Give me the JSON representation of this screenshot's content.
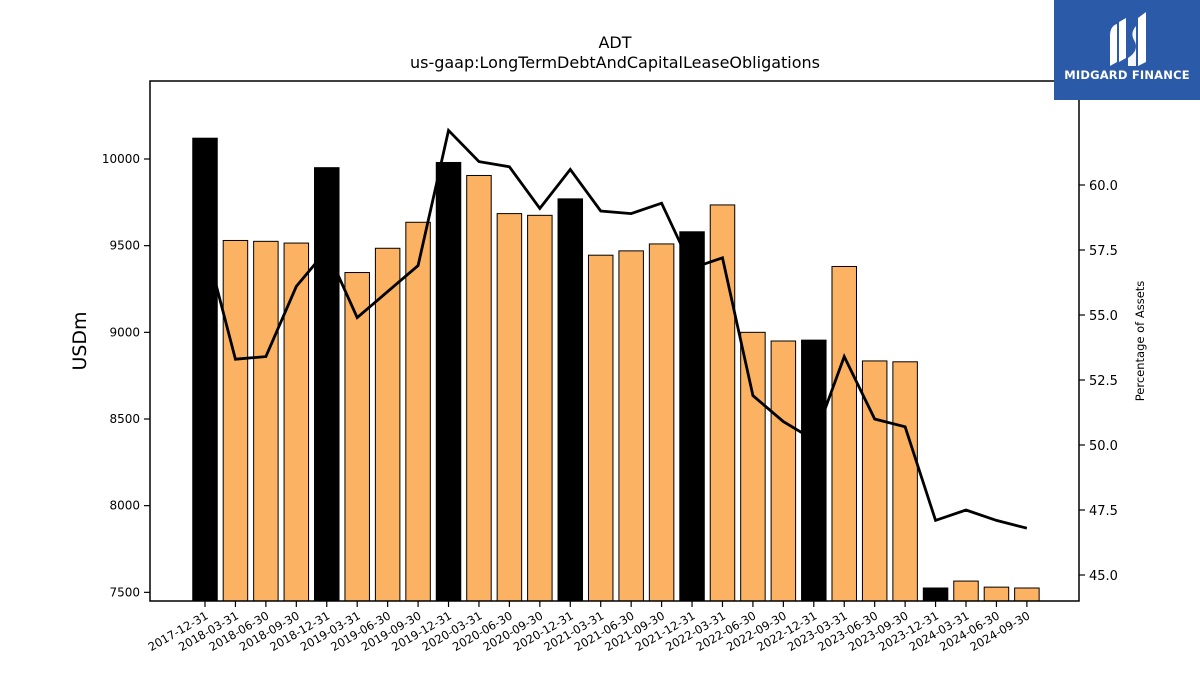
{
  "logo": {
    "text": "MIDGARD FINANCE",
    "icon": "midgard-logo-icon",
    "background": "#2a5aa8"
  },
  "chart_data": {
    "type": "bar",
    "title": "ADT",
    "subtitle": "us-gaap:LongTermDebtAndCapitalLeaseObligations",
    "ylabel": "USDm",
    "y2label": "Percentage of Assets",
    "ylim": [
      7450,
      10450
    ],
    "y2lim": [
      44.0,
      64.0
    ],
    "yticks": [
      7500,
      8000,
      8500,
      9000,
      9500,
      10000
    ],
    "y2ticks": [
      45.0,
      47.5,
      50.0,
      52.5,
      55.0,
      57.5,
      60.0
    ],
    "categories": [
      "2017-12-31",
      "2018-03-31",
      "2018-06-30",
      "2018-09-30",
      "2018-12-31",
      "2019-03-31",
      "2019-06-30",
      "2019-09-30",
      "2019-12-31",
      "2020-03-31",
      "2020-06-30",
      "2020-09-30",
      "2020-12-31",
      "2021-03-31",
      "2021-06-30",
      "2021-09-30",
      "2021-12-31",
      "2022-03-31",
      "2022-06-30",
      "2022-09-30",
      "2022-12-31",
      "2023-03-31",
      "2023-06-30",
      "2023-09-30",
      "2023-12-31",
      "2024-03-31",
      "2024-06-30",
      "2024-09-30"
    ],
    "series": [
      {
        "type": "bar",
        "values": [
          10120,
          9530,
          9525,
          9515,
          9950,
          9345,
          9485,
          9635,
          9980,
          9905,
          9685,
          9675,
          9770,
          9445,
          9470,
          9510,
          9580,
          9735,
          9000,
          8950,
          8955,
          9380,
          8835,
          8830,
          7525,
          7565,
          7530,
          7525
        ],
        "colors": {
          "year_end": "#000000",
          "quarter": "#fbb262"
        }
      },
      {
        "type": "line",
        "axis": "right",
        "values": [
          57.8,
          53.3,
          53.4,
          56.1,
          57.5,
          54.9,
          55.9,
          56.9,
          62.1,
          60.9,
          60.7,
          59.1,
          60.6,
          59.0,
          58.9,
          59.3,
          56.8,
          57.2,
          51.9,
          50.9,
          50.2,
          53.4,
          51.0,
          50.7,
          47.1,
          47.5,
          47.1,
          46.8
        ],
        "color": "#000000"
      }
    ],
    "year_end_flags": [
      true,
      false,
      false,
      false,
      true,
      false,
      false,
      false,
      true,
      false,
      false,
      false,
      true,
      false,
      false,
      false,
      true,
      false,
      false,
      false,
      true,
      false,
      false,
      false,
      true,
      false,
      false,
      false
    ],
    "grid": false,
    "legend": "none"
  }
}
